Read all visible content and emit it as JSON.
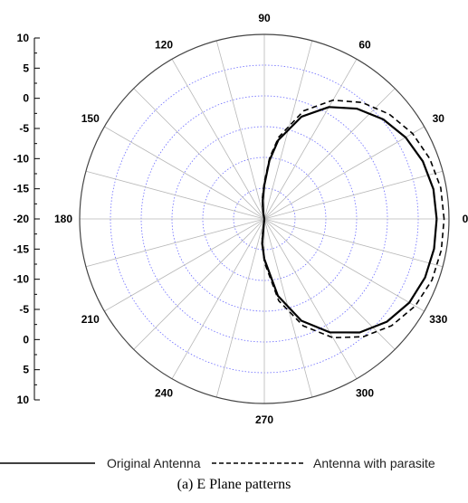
{
  "chart_data": {
    "type": "polar",
    "caption": "(a) E Plane patterns",
    "angle_labels": [
      "90",
      "60",
      "30",
      "0",
      "330",
      "300",
      "270",
      "240",
      "210",
      "180",
      "150",
      "120"
    ],
    "angles_deg": [
      90,
      60,
      30,
      0,
      330,
      300,
      270,
      240,
      210,
      180,
      150,
      120
    ],
    "radial_axis": {
      "labels": [
        "10",
        "5",
        "0",
        "-5",
        "-10",
        "-15",
        "-20",
        "-15",
        "-10",
        "-5",
        "0",
        "5",
        "10"
      ],
      "range": [
        -20,
        10
      ],
      "step": 5
    },
    "series": [
      {
        "name": "Original Antenna",
        "style": "solid",
        "color": "#000000",
        "points": [
          [
            0,
            8.0
          ],
          [
            10,
            7.9
          ],
          [
            20,
            7.4
          ],
          [
            30,
            6.5
          ],
          [
            40,
            5.2
          ],
          [
            50,
            3.4
          ],
          [
            60,
            1.0
          ],
          [
            70,
            -2.3
          ],
          [
            80,
            -7.0
          ],
          [
            85,
            -10.5
          ],
          [
            90,
            -14.5
          ],
          [
            95,
            -17.0
          ],
          [
            100,
            -19.0
          ],
          [
            103,
            -20.0
          ],
          [
            257,
            -20.0
          ],
          [
            265,
            -16.0
          ],
          [
            270,
            -13.5
          ],
          [
            280,
            -7.3
          ],
          [
            290,
            -2.4
          ],
          [
            300,
            1.3
          ],
          [
            310,
            4.1
          ],
          [
            320,
            6.0
          ],
          [
            330,
            7.2
          ],
          [
            340,
            7.8
          ],
          [
            350,
            8.0
          ],
          [
            360,
            8.0
          ]
        ]
      },
      {
        "name": "Antenna with parasite",
        "style": "dashed",
        "color": "#000000",
        "points": [
          [
            0,
            9.2
          ],
          [
            10,
            9.1
          ],
          [
            20,
            8.6
          ],
          [
            30,
            7.8
          ],
          [
            40,
            6.5
          ],
          [
            50,
            4.7
          ],
          [
            60,
            2.3
          ],
          [
            70,
            -1.3
          ],
          [
            80,
            -6.5
          ],
          [
            85,
            -10.0
          ],
          [
            90,
            -14.0
          ],
          [
            95,
            -16.5
          ],
          [
            100,
            -18.5
          ],
          [
            104,
            -20.0
          ],
          [
            256,
            -20.0
          ],
          [
            263,
            -17.0
          ],
          [
            270,
            -13.0
          ],
          [
            280,
            -6.5
          ],
          [
            290,
            -1.5
          ],
          [
            300,
            2.3
          ],
          [
            310,
            5.0
          ],
          [
            320,
            7.0
          ],
          [
            330,
            8.3
          ],
          [
            340,
            9.0
          ],
          [
            350,
            9.2
          ],
          [
            360,
            9.2
          ]
        ]
      }
    ],
    "grid": true,
    "legend_position": "bottom"
  }
}
